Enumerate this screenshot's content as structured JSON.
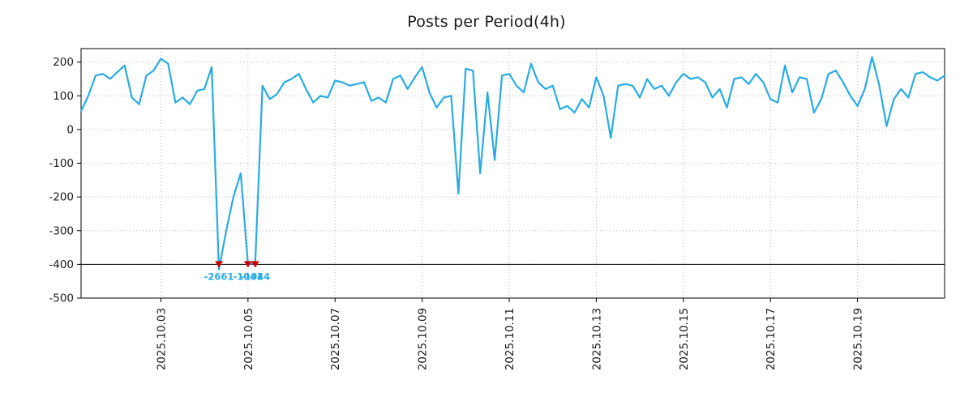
{
  "chart_data": {
    "type": "line",
    "title": "Posts per Period(4h)",
    "period_hours": 4,
    "start": "2025-10-01 04:00",
    "line_color": "#29abe2",
    "marker_color": "#cc0000",
    "marker_label_color": "#29abe2",
    "grid_color": "#b5b5b5",
    "threshold_line_y": -400,
    "ylim": [
      -500,
      240
    ],
    "y_ticks": [
      200,
      100,
      0,
      -100,
      -200,
      -300,
      -400,
      -500
    ],
    "x_tick_labels": [
      "2025.10.03",
      "2025.10.05",
      "2025.10.07",
      "2025.10.09",
      "2025.10.11",
      "2025.10.13",
      "2025.10.15",
      "2025.10.17",
      "2025.10.19"
    ],
    "x_tick_indices": [
      11,
      23,
      35,
      47,
      59,
      71,
      83,
      95,
      107
    ],
    "values": [
      55,
      100,
      160,
      165,
      150,
      170,
      190,
      95,
      75,
      160,
      175,
      210,
      195,
      80,
      95,
      75,
      115,
      120,
      185,
      -415,
      -300,
      -200,
      -130,
      -400,
      -395,
      130,
      90,
      105,
      140,
      150,
      165,
      120,
      80,
      100,
      95,
      145,
      140,
      130,
      135,
      140,
      85,
      95,
      80,
      150,
      160,
      120,
      155,
      185,
      110,
      65,
      95,
      100,
      -190,
      180,
      175,
      -130,
      110,
      -90,
      160,
      165,
      130,
      110,
      195,
      140,
      120,
      130,
      60,
      70,
      50,
      90,
      65,
      155,
      100,
      -25,
      130,
      135,
      130,
      95,
      150,
      120,
      130,
      100,
      140,
      165,
      150,
      155,
      140,
      95,
      120,
      65,
      150,
      155,
      135,
      165,
      140,
      90,
      80,
      190,
      110,
      155,
      150,
      50,
      90,
      165,
      175,
      140,
      100,
      70,
      120,
      215,
      130,
      10,
      90,
      120,
      95,
      165,
      170,
      155,
      145,
      160
    ],
    "min_markers": [
      {
        "index": 19,
        "y": -400,
        "label": "-2661"
      },
      {
        "index": 23,
        "y": -400,
        "label": "-1041"
      },
      {
        "index": 24,
        "y": -400,
        "label": "-1044"
      }
    ]
  }
}
